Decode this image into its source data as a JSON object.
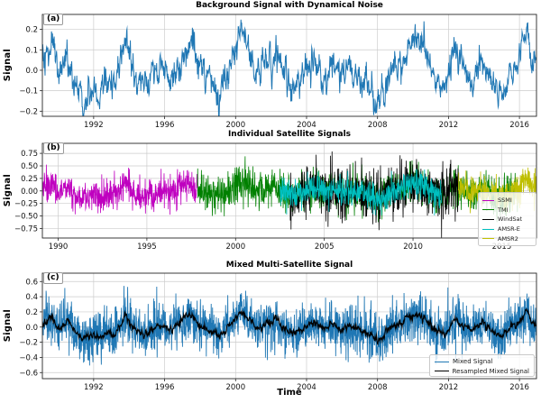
{
  "figure": {
    "background_color": "#ffffff",
    "text_color": "#000000",
    "grid_color": "#cccccc"
  },
  "chart_data": [
    {
      "id": "a",
      "type": "line",
      "panel_label": "(a)",
      "title": "Background Signal with Dynamical Noise",
      "ylabel": "Signal",
      "xlim": [
        1989.11,
        2016.96
      ],
      "ylim": [
        -0.225,
        0.273
      ],
      "xticks": [
        1992,
        1996,
        2000,
        2004,
        2008,
        2012,
        2016
      ],
      "yticks": [
        0.2,
        0.1,
        0.0,
        -0.1,
        -0.2
      ],
      "ytick_decimals": 1,
      "grid": true,
      "legend": false,
      "series": [
        {
          "name": "Background Signal",
          "color": "#1f77b4",
          "line_width": 1.0,
          "span": [
            1989.11,
            2016.96
          ],
          "follows_background": true,
          "noise_model": "ar1",
          "noise_std": 0.033,
          "noise_alpha": 0.6,
          "sample_step_years": 0.019
        }
      ]
    },
    {
      "id": "b",
      "type": "line",
      "panel_label": "(b)",
      "title": "Individual Satellite Signals",
      "ylabel": "Signal",
      "xlim": [
        1989.11,
        2016.96
      ],
      "ylim": [
        -0.94,
        0.95
      ],
      "xticks": [
        1990,
        1995,
        2000,
        2005,
        2010,
        2015
      ],
      "yticks": [
        0.75,
        0.5,
        0.25,
        0.0,
        -0.25,
        -0.5,
        -0.75
      ],
      "ytick_decimals": 2,
      "grid": true,
      "legend": true,
      "series": [
        {
          "name": "SSMI",
          "color": "#bf00bf",
          "line_width": 0.8,
          "span": [
            1989.11,
            1997.85
          ],
          "follows_background": true,
          "noise_model": "white",
          "noise_std": 0.16,
          "sample_step_years": 0.014
        },
        {
          "name": "TMI",
          "color": "#008000",
          "line_width": 0.8,
          "span": [
            1997.85,
            2015.9
          ],
          "follows_background": true,
          "noise_model": "white",
          "noise_std": 0.19,
          "sample_step_years": 0.014
        },
        {
          "name": "WindSat",
          "color": "#000000",
          "line_width": 0.8,
          "span": [
            2003.0,
            2012.55
          ],
          "follows_background": true,
          "noise_model": "white",
          "noise_std": 0.25,
          "sample_step_years": 0.014
        },
        {
          "name": "AMSR-E",
          "color": "#00bfbf",
          "line_width": 0.8,
          "span": [
            2002.5,
            2011.6
          ],
          "follows_background": true,
          "noise_model": "white",
          "noise_std": 0.14,
          "sample_step_years": 0.014
        },
        {
          "name": "AMSR2",
          "color": "#bfbf00",
          "line_width": 0.8,
          "span": [
            2012.55,
            2016.96
          ],
          "follows_background": true,
          "noise_model": "white",
          "noise_std": 0.17,
          "sample_step_years": 0.014
        }
      ]
    },
    {
      "id": "c",
      "type": "line",
      "panel_label": "(c)",
      "title": "Mixed Multi-Satellite Signal",
      "ylabel": "Signal",
      "xlabel": "Time",
      "xlim": [
        1989.11,
        2016.96
      ],
      "ylim": [
        -0.68,
        0.71
      ],
      "xticks": [
        1992,
        1996,
        2000,
        2004,
        2008,
        2012,
        2016
      ],
      "yticks": [
        0.6,
        0.4,
        0.2,
        0.0,
        -0.2,
        -0.4,
        -0.6
      ],
      "ytick_decimals": 1,
      "grid": true,
      "legend": true,
      "series": [
        {
          "name": "Mixed Signal",
          "color": "#1f77b4",
          "line_width": 0.9,
          "span": [
            1989.11,
            2016.96
          ],
          "follows_background": true,
          "noise_model": "white",
          "noise_std": 0.15,
          "sample_step_years": 0.011
        },
        {
          "name": "Resampled Mixed Signal",
          "color": "#000000",
          "line_width": 1.1,
          "span": [
            1989.11,
            2016.96
          ],
          "follows_background": true,
          "noise_model": "ar1",
          "noise_std": 0.02,
          "noise_alpha": 0.55,
          "sample_step_years": 0.019
        }
      ]
    }
  ],
  "background_signal_keypoints": [
    [
      1989.11,
      0.02
    ],
    [
      1989.6,
      0.14
    ],
    [
      1990.0,
      -0.03
    ],
    [
      1990.5,
      0.09
    ],
    [
      1991.0,
      -0.05
    ],
    [
      1991.4,
      -0.16
    ],
    [
      1992.0,
      -0.1
    ],
    [
      1992.4,
      -0.14
    ],
    [
      1992.8,
      -0.05
    ],
    [
      1993.2,
      -0.1
    ],
    [
      1993.8,
      0.16
    ],
    [
      1994.3,
      -0.02
    ],
    [
      1994.8,
      -0.11
    ],
    [
      1995.3,
      -0.03
    ],
    [
      1995.9,
      0.02
    ],
    [
      1996.3,
      -0.05
    ],
    [
      1996.8,
      0.03
    ],
    [
      1997.4,
      0.17
    ],
    [
      1998.0,
      0.02
    ],
    [
      1998.5,
      -0.03
    ],
    [
      1999.1,
      -0.13
    ],
    [
      1999.6,
      0.0
    ],
    [
      2000.3,
      0.2
    ],
    [
      2000.8,
      0.1
    ],
    [
      2001.2,
      -0.02
    ],
    [
      2001.8,
      0.04
    ],
    [
      2002.3,
      0.09
    ],
    [
      2002.8,
      -0.02
    ],
    [
      2003.3,
      -0.1
    ],
    [
      2003.9,
      0.0
    ],
    [
      2004.4,
      0.05
    ],
    [
      2004.9,
      -0.02
    ],
    [
      2005.4,
      0.03
    ],
    [
      2005.9,
      -0.03
    ],
    [
      2006.4,
      0.0
    ],
    [
      2006.9,
      -0.02
    ],
    [
      2007.4,
      -0.07
    ],
    [
      2008.1,
      -0.19
    ],
    [
      2008.7,
      -0.02
    ],
    [
      2009.2,
      0.03
    ],
    [
      2009.7,
      0.12
    ],
    [
      2010.3,
      0.16
    ],
    [
      2010.8,
      0.09
    ],
    [
      2011.3,
      -0.05
    ],
    [
      2011.8,
      -0.11
    ],
    [
      2012.3,
      0.1
    ],
    [
      2012.8,
      0.02
    ],
    [
      2013.3,
      -0.04
    ],
    [
      2013.9,
      0.06
    ],
    [
      2014.4,
      -0.04
    ],
    [
      2014.9,
      -0.13
    ],
    [
      2015.4,
      -0.02
    ],
    [
      2015.9,
      0.04
    ],
    [
      2016.4,
      0.22
    ],
    [
      2016.7,
      0.06
    ],
    [
      2016.96,
      0.04
    ]
  ]
}
